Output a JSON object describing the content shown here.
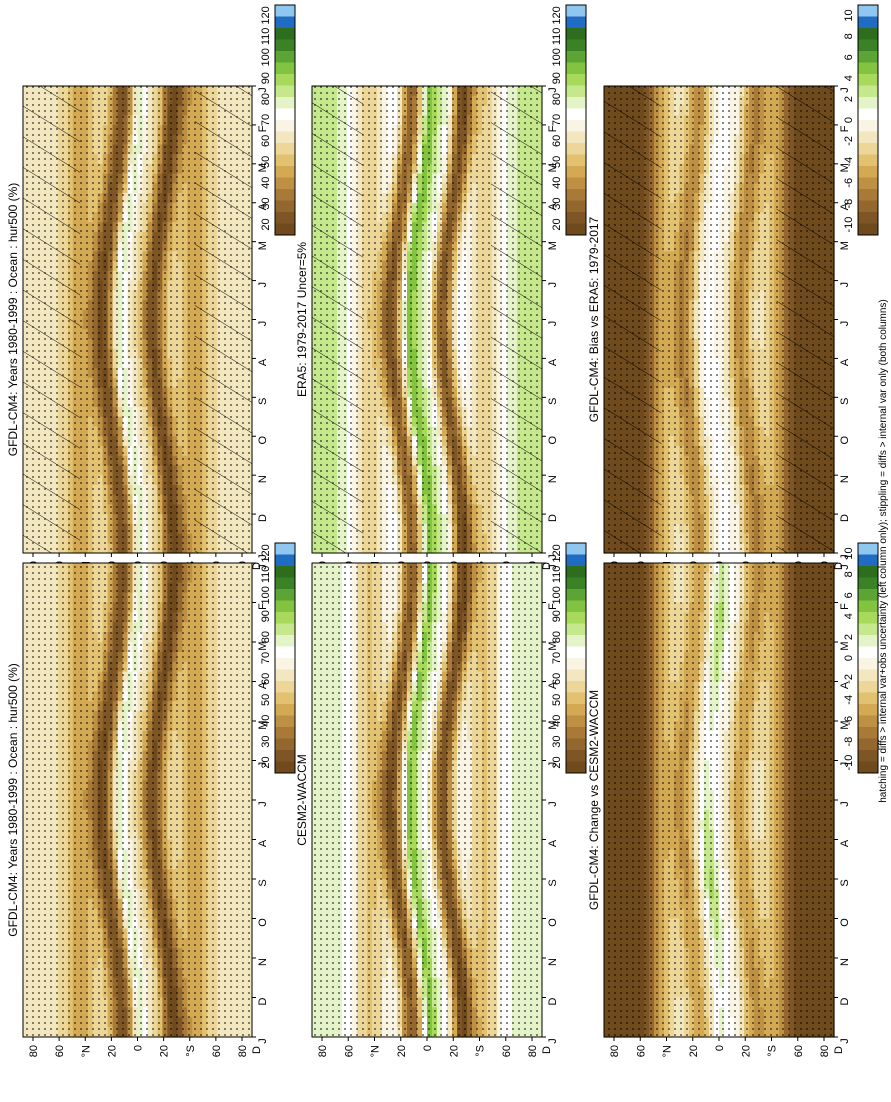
{
  "figure": {
    "footnote": "hatching = diffs > internal var+obs uncertainty (left column only); stippling = diffs > internal var only (both columns)"
  },
  "colors": {
    "abs_scale": [
      "#6e4a1c",
      "#7e5524",
      "#93672d",
      "#a97a37",
      "#be9043",
      "#d3a954",
      "#e2c271",
      "#ecd799",
      "#f3e7bf",
      "#f9f4e3",
      "#ffffff",
      "#e4f4c8",
      "#c6e88d",
      "#a7d95a",
      "#82c43f",
      "#5ca433",
      "#3b8227",
      "#2d6d1d",
      "#1f6cc2",
      "#8fc7f0"
    ],
    "diff_scale": [
      "#6e4a1c",
      "#7e5524",
      "#93672d",
      "#a97a37",
      "#be9043",
      "#d3a954",
      "#e2c271",
      "#ecd799",
      "#f3e7bf",
      "#f9f4e3",
      "#ffffff",
      "#e4f4c8",
      "#c6e88d",
      "#a7d95a",
      "#82c43f",
      "#5ca433",
      "#3b8227",
      "#2d6d1d",
      "#1f6cc2",
      "#8fc7f0"
    ],
    "hatch": "#000000",
    "stipple": "#000000"
  },
  "chart_data": [
    {
      "id": "model",
      "type": "heatmap",
      "title": "GFDL-CM4: Years 1980-1999 : Ocean : hur500 (%)",
      "x_ticks": [
        "J",
        "F",
        "M",
        "A",
        "M",
        "J",
        "J",
        "A",
        "S",
        "O",
        "N",
        "D",
        "J"
      ],
      "y_ticks": [
        "80",
        "60",
        "°N",
        "20",
        "0",
        "20",
        "°S",
        "60",
        "80"
      ],
      "y_edge_label": "D",
      "lat_range": [
        -90,
        90
      ],
      "colorbar": {
        "labels": [
          "120",
          "110",
          "100",
          "90",
          "80",
          "70",
          "60",
          "50",
          "40",
          "30",
          "20"
        ],
        "range": [
          15,
          125
        ]
      },
      "field": {
        "kind": "abs",
        "itcz_rh": 58,
        "subsid_rh": 18,
        "midlat_rh": 46,
        "polar_rh": 62,
        "seasonal_shift_deg": 8
      },
      "hatch": "latitudes_poleward_of_45",
      "stipple": "yes"
    },
    {
      "id": "obs",
      "type": "heatmap",
      "title": "ERA5: 1979-2017 Uncer=5%",
      "x_ticks": [
        "J",
        "F",
        "M",
        "A",
        "M",
        "J",
        "J",
        "A",
        "S",
        "O",
        "N",
        "D",
        "J"
      ],
      "y_ticks": [
        "80",
        "60",
        "°N",
        "20",
        "0",
        "20",
        "°S",
        "60",
        "80"
      ],
      "y_edge_label": "D",
      "lat_range": [
        -90,
        90
      ],
      "colorbar": {
        "labels": [
          "120",
          "110",
          "100",
          "90",
          "80",
          "70",
          "60",
          "50",
          "40",
          "30",
          "20"
        ],
        "range": [
          15,
          125
        ]
      },
      "field": {
        "kind": "abs",
        "itcz_rh": 60,
        "subsid_rh": 22,
        "midlat_rh": 55,
        "polar_rh": 82,
        "seasonal_shift_deg": 8
      },
      "hatch": "latitudes_poleward_of_50",
      "stipple": "yes"
    },
    {
      "id": "bias",
      "type": "heatmap",
      "title": "GFDL-CM4: Bias vs ERA5: 1979-2017",
      "x_ticks": [
        "J",
        "F",
        "M",
        "A",
        "M",
        "J",
        "J",
        "A",
        "S",
        "O",
        "N",
        "D",
        "J"
      ],
      "y_ticks": [
        "80",
        "60",
        "°N",
        "20",
        "0",
        "20",
        "°S",
        "60",
        "80"
      ],
      "y_edge_label": "D",
      "lat_range": [
        -90,
        90
      ],
      "colorbar": {
        "labels": [
          "10",
          "8",
          "6",
          "4",
          "2",
          "0",
          "-2",
          "-4",
          "-6",
          "-8",
          "-10"
        ],
        "range": [
          -11,
          11
        ]
      },
      "field": {
        "kind": "diff",
        "polar_bias": -12,
        "subtrop_bias": -6,
        "itcz_bias": 0.5
      },
      "hatch": "latitudes_poleward_of_45",
      "stipple": "yes"
    },
    {
      "id": "model2",
      "type": "heatmap",
      "title": "GFDL-CM4: Years 1980-1999 : Ocean : hur500 (%)",
      "x_ticks": [
        "J",
        "F",
        "M",
        "A",
        "M",
        "J",
        "J",
        "A",
        "S",
        "O",
        "N",
        "D",
        "J"
      ],
      "y_ticks": [
        "80",
        "60",
        "°N",
        "20",
        "0",
        "20",
        "°S",
        "60",
        "80"
      ],
      "y_edge_label": "D",
      "lat_range": [
        -90,
        90
      ],
      "colorbar": {
        "labels": [
          "120",
          "110",
          "100",
          "90",
          "80",
          "70",
          "60",
          "50",
          "40",
          "30",
          "20"
        ],
        "range": [
          15,
          125
        ]
      },
      "field": {
        "kind": "abs",
        "itcz_rh": 58,
        "subsid_rh": 18,
        "midlat_rh": 46,
        "polar_rh": 62,
        "seasonal_shift_deg": 8
      },
      "hatch": "none",
      "stipple": "all"
    },
    {
      "id": "ref2",
      "type": "heatmap",
      "title": "CESM2-WACCM",
      "x_ticks": [
        "J",
        "F",
        "M",
        "A",
        "M",
        "J",
        "J",
        "A",
        "S",
        "O",
        "N",
        "D",
        "J"
      ],
      "y_ticks": [
        "80",
        "60",
        "°N",
        "20",
        "0",
        "20",
        "°S",
        "60",
        "80"
      ],
      "y_edge_label": "D",
      "lat_range": [
        -90,
        90
      ],
      "colorbar": {
        "labels": [
          "120",
          "110",
          "100",
          "90",
          "80",
          "70",
          "60",
          "50",
          "40",
          "30",
          "20"
        ],
        "range": [
          15,
          125
        ]
      },
      "field": {
        "kind": "abs",
        "itcz_rh": 60,
        "subsid_rh": 20,
        "midlat_rh": 52,
        "polar_rh": 78,
        "seasonal_shift_deg": 8
      },
      "hatch": "none",
      "stipple": "yes"
    },
    {
      "id": "change",
      "type": "heatmap",
      "title": "GFDL-CM4: Change vs CESM2-WACCM",
      "x_ticks": [
        "J",
        "F",
        "M",
        "A",
        "M",
        "J",
        "J",
        "A",
        "S",
        "O",
        "N",
        "D",
        "J"
      ],
      "y_ticks": [
        "80",
        "60",
        "°N",
        "20",
        "0",
        "20",
        "°S",
        "60",
        "80"
      ],
      "y_edge_label": "D",
      "lat_range": [
        -90,
        90
      ],
      "colorbar": {
        "labels": [
          "10",
          "8",
          "6",
          "4",
          "2",
          "0",
          "-2",
          "-4",
          "-6",
          "-8",
          "-10"
        ],
        "range": [
          -11,
          11
        ]
      },
      "field": {
        "kind": "diff",
        "polar_bias": -12,
        "subtrop_bias": -5,
        "itcz_bias": 2.5
      },
      "hatch": "none",
      "stipple": "yes"
    }
  ]
}
